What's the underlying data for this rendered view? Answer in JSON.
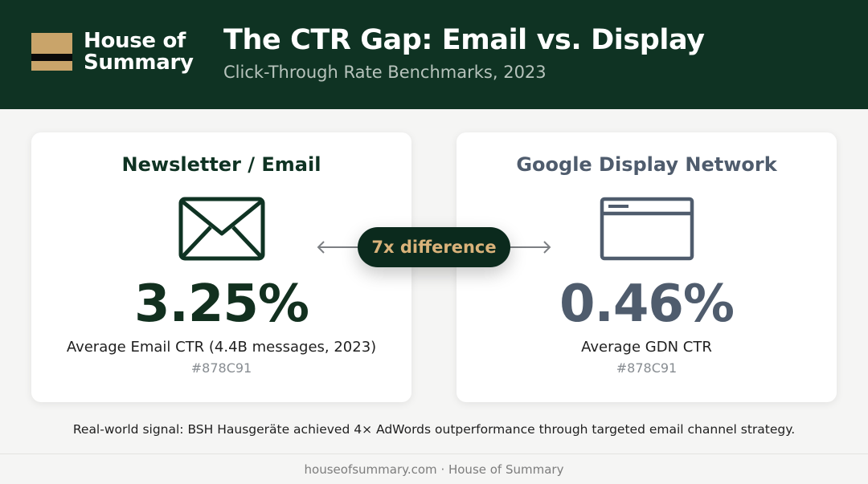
{
  "brand": {
    "line1": "House of",
    "line2": "Summary",
    "colors": {
      "gold": "#c9a46a",
      "dark_green": "#0f3323"
    }
  },
  "header": {
    "title": "The CTR Gap: Email vs. Display",
    "subtitle": "Click-Through Rate Benchmarks, 2023"
  },
  "cards": [
    {
      "title": "Newsletter / Email",
      "icon": "envelope-icon",
      "value": "3.25%",
      "caption": "Average Email CTR (4.4B messages, 2023)",
      "color_code": "#878C91",
      "accent": "#12301f"
    },
    {
      "title": "Google Display Network",
      "icon": "browser-window-icon",
      "value": "0.46%",
      "caption": "Average GDN CTR",
      "color_code": "#878C91",
      "accent": "#4f5c6d"
    }
  ],
  "comparison": {
    "label": "7x difference",
    "icons": [
      "arrow-left-icon",
      "arrow-right-icon"
    ]
  },
  "signal": "Real-world signal: BSH Hausgeräte achieved 4× AdWords outperformance through targeted email channel strategy.",
  "footer": "houseofsummary.com · House of Summary"
}
